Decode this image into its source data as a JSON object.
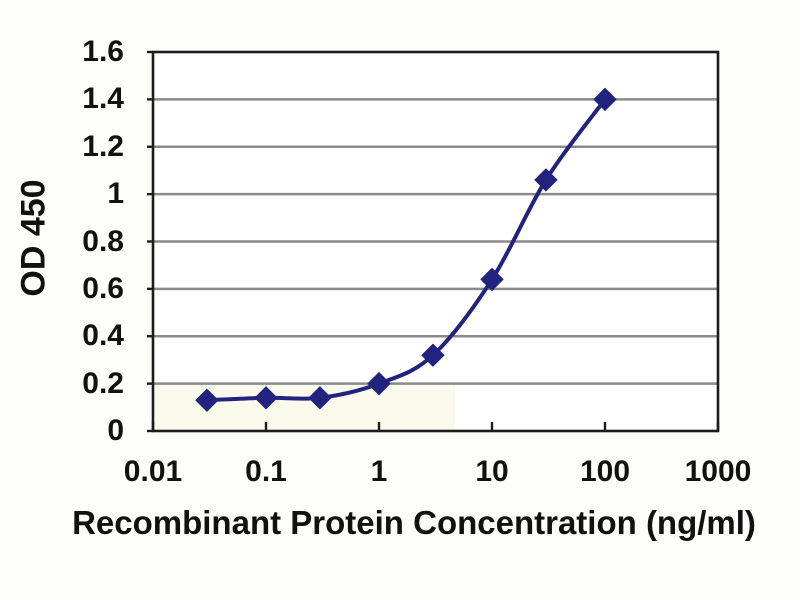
{
  "figure": {
    "background": "#fdfdfb"
  },
  "chart_data": {
    "type": "line",
    "title": "",
    "xlabel": "Recombinant Protein Concentration (ng/ml)",
    "ylabel": "OD 450",
    "x_scale": "log",
    "xlim": [
      0.01,
      1000
    ],
    "ylim": [
      0,
      1.6
    ],
    "x_ticks": [
      0.01,
      0.1,
      1,
      10,
      100,
      1000
    ],
    "x_tick_labels": [
      "0.01",
      "0.1",
      "1",
      "10",
      "100",
      "1000"
    ],
    "y_ticks": [
      0,
      0.2,
      0.4,
      0.6,
      0.8,
      1,
      1.2,
      1.4,
      1.6
    ],
    "y_tick_labels": [
      "0",
      "0.2",
      "0.4",
      "0.6",
      "0.8",
      "1",
      "1.2",
      "1.4",
      "1.6"
    ],
    "grid": "horizontal",
    "legend": "none",
    "series": [
      {
        "name": "OD 450",
        "marker": "diamond",
        "line_style": "smooth",
        "x": [
          0.03,
          0.1,
          0.3,
          1,
          3,
          10,
          30,
          100
        ],
        "y": [
          0.13,
          0.14,
          0.14,
          0.2,
          0.32,
          0.64,
          1.06,
          1.4
        ]
      }
    ],
    "colors": {
      "line": "#22227f",
      "grid": "#8a8a8a",
      "axis": "#1c1c1c",
      "text": "#111111"
    }
  }
}
